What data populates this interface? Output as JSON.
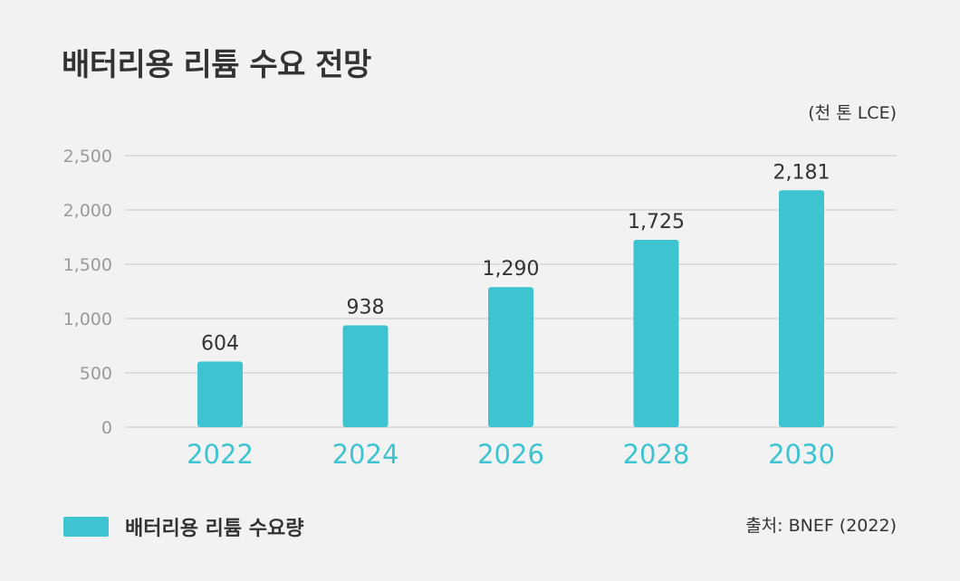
{
  "title": "배터리용 리튬 수요 전망",
  "unit": "(천 톤 LCE)",
  "legend_label": "배터리용 리튬 수요량",
  "source": "출처: BNEF (2022)",
  "colors": {
    "bar": "#3ec3d0",
    "grid": "#d6d6d6",
    "tick": "#9a9a9a",
    "category": "#3ec3d0",
    "value_label": "#333333"
  },
  "chart_data": {
    "type": "bar",
    "title": "배터리용 리튬 수요 전망",
    "ylabel": "(천 톤 LCE)",
    "categories": [
      "2022",
      "2024",
      "2026",
      "2028",
      "2030"
    ],
    "series": [
      {
        "name": "배터리용 리튬 수요량",
        "values": [
          604,
          938,
          1290,
          1725,
          2181
        ]
      }
    ],
    "value_labels": [
      "604",
      "938",
      "1,290",
      "1,725",
      "2,181"
    ],
    "yticks": [
      0,
      500,
      1000,
      1500,
      2000,
      2500
    ],
    "ytick_labels": [
      "0",
      "500",
      "1,000",
      "1,500",
      "2,000",
      "2,500"
    ],
    "ylim": [
      0,
      2500
    ],
    "grid": true,
    "legend_position": "bottom-left"
  }
}
